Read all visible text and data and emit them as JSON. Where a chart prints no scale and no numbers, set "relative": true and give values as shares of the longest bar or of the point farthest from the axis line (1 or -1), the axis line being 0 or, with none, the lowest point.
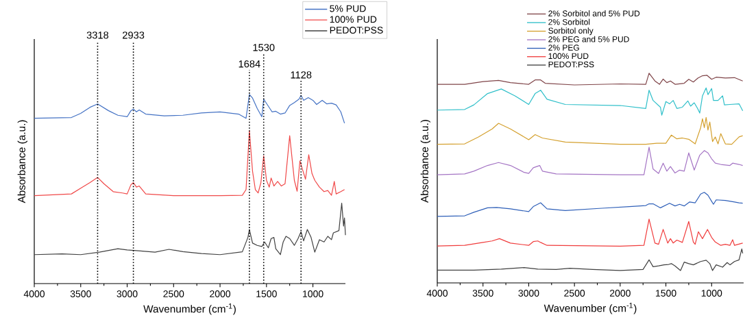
{
  "chart_data": [
    {
      "type": "line",
      "relative": true,
      "xlabel": "Wavenumber (cm$^{-1}$)",
      "ylabel": "Absorbance (a.u.)",
      "xlim": [
        4000,
        650
      ],
      "xticks": [
        4000,
        3500,
        3000,
        2500,
        2000,
        1500,
        1000
      ],
      "legend": "top right",
      "ref_lines": [
        {
          "axis": "x",
          "value": 3318,
          "label": "3318",
          "line_style": "dotted"
        },
        {
          "axis": "x",
          "value": 2933,
          "label": "2933",
          "line_style": "dotted"
        },
        {
          "axis": "x",
          "value": 1684,
          "label": "1684",
          "line_style": "dotted"
        },
        {
          "axis": "x",
          "value": 1530,
          "label": "1530",
          "line_style": "dotted"
        },
        {
          "axis": "x",
          "value": 1128,
          "label": "1128",
          "line_style": "dotted"
        }
      ],
      "series": [
        {
          "name": "5% PUD",
          "color": "#4472c4",
          "x": [
            4000,
            3600,
            3500,
            3400,
            3318,
            3200,
            3100,
            3000,
            2960,
            2933,
            2900,
            2870,
            2800,
            2600,
            2400,
            2200,
            2000,
            1800,
            1720,
            1684,
            1650,
            1600,
            1550,
            1530,
            1480,
            1440,
            1400,
            1350,
            1300,
            1250,
            1200,
            1150,
            1128,
            1100,
            1050,
            1000,
            960,
            900,
            850,
            800,
            750,
            700,
            660
          ],
          "values": [
            0.874,
            0.878,
            0.9,
            0.932,
            0.95,
            0.914,
            0.89,
            0.882,
            0.914,
            0.923,
            0.908,
            0.918,
            0.896,
            0.887,
            0.89,
            0.902,
            0.908,
            0.896,
            0.874,
            1.0,
            0.981,
            0.926,
            0.882,
            0.975,
            0.938,
            0.908,
            0.911,
            0.896,
            0.902,
            0.942,
            0.957,
            0.975,
            0.995,
            0.969,
            0.983,
            0.969,
            0.947,
            0.969,
            0.95,
            0.954,
            0.945,
            0.908,
            0.848
          ]
        },
        {
          "name": "100% PUD",
          "color": "#f04848",
          "x": [
            4000,
            3600,
            3500,
            3400,
            3318,
            3250,
            3150,
            3050,
            3000,
            2960,
            2933,
            2900,
            2870,
            2800,
            2500,
            2000,
            1760,
            1720,
            1684,
            1650,
            1620,
            1590,
            1560,
            1530,
            1500,
            1470,
            1450,
            1420,
            1380,
            1340,
            1300,
            1250,
            1200,
            1170,
            1140,
            1110,
            1080,
            1045,
            1010,
            980,
            930,
            880,
            840,
            800,
            770,
            750,
            700,
            660
          ],
          "values": [
            0.465,
            0.474,
            0.504,
            0.534,
            0.561,
            0.528,
            0.486,
            0.479,
            0.474,
            0.522,
            0.534,
            0.51,
            0.516,
            0.474,
            0.465,
            0.465,
            0.467,
            0.497,
            0.809,
            0.594,
            0.497,
            0.479,
            0.534,
            0.675,
            0.546,
            0.51,
            0.558,
            0.516,
            0.54,
            0.516,
            0.528,
            0.782,
            0.546,
            0.488,
            0.649,
            0.6,
            0.552,
            0.681,
            0.582,
            0.546,
            0.51,
            0.486,
            0.492,
            0.467,
            0.54,
            0.474,
            0.486,
            0.497
          ]
        },
        {
          "name": "PEDOT:PSS",
          "color": "#404040",
          "x": [
            4000,
            3700,
            3500,
            3300,
            3100,
            3000,
            2900,
            2700,
            2550,
            2400,
            2200,
            2000,
            1760,
            1700,
            1684,
            1650,
            1600,
            1550,
            1520,
            1480,
            1450,
            1420,
            1400,
            1350,
            1320,
            1290,
            1250,
            1200,
            1160,
            1128,
            1100,
            1060,
            1020,
            980,
            930,
            880,
            840,
            800,
            780,
            720,
            690,
            670,
            660,
            650
          ],
          "values": [
            0.153,
            0.157,
            0.153,
            0.166,
            0.184,
            0.178,
            0.174,
            0.166,
            0.181,
            0.169,
            0.159,
            0.153,
            0.168,
            0.244,
            0.286,
            0.214,
            0.202,
            0.196,
            0.22,
            0.189,
            0.238,
            0.244,
            0.184,
            0.153,
            0.22,
            0.25,
            0.238,
            0.202,
            0.238,
            0.274,
            0.226,
            0.286,
            0.244,
            0.166,
            0.232,
            0.22,
            0.25,
            0.232,
            0.268,
            0.28,
            0.425,
            0.304,
            0.347,
            0.256
          ]
        }
      ]
    },
    {
      "type": "line",
      "relative": true,
      "xlabel": "Wavenumber (cm$^{-1}$)",
      "ylabel": "Absorbance (a.u.)",
      "xlim": [
        4000,
        650
      ],
      "xticks": [
        4000,
        3500,
        3000,
        2500,
        2000,
        1500,
        1000
      ],
      "legend": "top",
      "series": [
        {
          "name": "2% Sorbitol and 5% PUD",
          "color": "#7f4448",
          "x": [
            4000,
            3700,
            3500,
            3330,
            3200,
            3000,
            2930,
            2870,
            2820,
            2500,
            2000,
            1720,
            1684,
            1620,
            1570,
            1530,
            1490,
            1450,
            1400,
            1300,
            1250,
            1200,
            1150,
            1100,
            1050,
            1000,
            950,
            850,
            750,
            660
          ],
          "values": [
            0.947,
            0.947,
            0.96,
            0.966,
            0.955,
            0.947,
            0.968,
            0.968,
            0.952,
            0.944,
            0.949,
            0.947,
            1.0,
            0.963,
            0.947,
            0.972,
            0.955,
            0.963,
            0.947,
            0.952,
            0.971,
            0.958,
            0.977,
            0.988,
            0.99,
            0.971,
            0.981,
            0.977,
            0.979,
            0.963
          ]
        },
        {
          "name": "2% Sorbitol",
          "color": "#2ebfc9",
          "x": [
            4000,
            3700,
            3600,
            3450,
            3300,
            3150,
            3000,
            2930,
            2870,
            2800,
            2600,
            2000,
            1720,
            1684,
            1640,
            1560,
            1545,
            1500,
            1460,
            1420,
            1380,
            1320,
            1260,
            1230,
            1190,
            1150,
            1130,
            1100,
            1060,
            1040,
            1000,
            980,
            930,
            880,
            860,
            800,
            700,
            660
          ],
          "values": [
            0.824,
            0.827,
            0.849,
            0.903,
            0.925,
            0.892,
            0.851,
            0.903,
            0.919,
            0.876,
            0.851,
            0.846,
            0.832,
            0.919,
            0.87,
            0.838,
            0.8,
            0.865,
            0.854,
            0.87,
            0.832,
            0.838,
            0.868,
            0.843,
            0.859,
            0.829,
            0.81,
            0.892,
            0.93,
            0.898,
            0.927,
            0.87,
            0.87,
            0.892,
            0.849,
            0.851,
            0.854,
            0.821
          ]
        },
        {
          "name": "Sorbitol only",
          "color": "#d4a02e",
          "x": [
            4000,
            3700,
            3550,
            3400,
            3330,
            3200,
            3050,
            3000,
            2930,
            2850,
            2600,
            2000,
            1720,
            1600,
            1500,
            1440,
            1380,
            1320,
            1250,
            1180,
            1120,
            1100,
            1080,
            1060,
            1040,
            1020,
            990,
            960,
            930,
            900,
            850,
            780,
            700,
            660
          ],
          "values": [
            0.661,
            0.663,
            0.696,
            0.734,
            0.761,
            0.734,
            0.696,
            0.683,
            0.707,
            0.691,
            0.672,
            0.661,
            0.661,
            0.666,
            0.666,
            0.705,
            0.687,
            0.691,
            0.685,
            0.663,
            0.74,
            0.783,
            0.74,
            0.789,
            0.729,
            0.767,
            0.674,
            0.696,
            0.663,
            0.712,
            0.663,
            0.661,
            0.696,
            0.702
          ]
        },
        {
          "name": "2% PEG and 5% PUD",
          "color": "#a474c4",
          "x": [
            4000,
            3700,
            3600,
            3450,
            3330,
            3200,
            3050,
            3000,
            2950,
            2880,
            2850,
            2700,
            2000,
            1740,
            1684,
            1640,
            1580,
            1530,
            1490,
            1450,
            1400,
            1350,
            1300,
            1250,
            1190,
            1130,
            1080,
            1040,
            1000,
            960,
            900,
            800,
            770,
            700,
            660
          ],
          "values": [
            0.516,
            0.52,
            0.533,
            0.56,
            0.574,
            0.56,
            0.527,
            0.522,
            0.549,
            0.56,
            0.533,
            0.52,
            0.516,
            0.516,
            0.647,
            0.543,
            0.522,
            0.571,
            0.533,
            0.555,
            0.524,
            0.538,
            0.533,
            0.62,
            0.538,
            0.609,
            0.631,
            0.62,
            0.592,
            0.571,
            0.565,
            0.56,
            0.571,
            0.565,
            0.56
          ]
        },
        {
          "name": "2% PEG",
          "color": "#2e5fb8",
          "x": [
            4000,
            3700,
            3600,
            3450,
            3350,
            3200,
            3000,
            2950,
            2870,
            2800,
            2600,
            2200,
            1900,
            1720,
            1684,
            1640,
            1560,
            1460,
            1400,
            1350,
            1300,
            1240,
            1180,
            1120,
            1080,
            1040,
            1000,
            980,
            950,
            850,
            750,
            700,
            660
          ],
          "values": [
            0.317,
            0.32,
            0.337,
            0.358,
            0.36,
            0.353,
            0.34,
            0.364,
            0.382,
            0.353,
            0.345,
            0.356,
            0.364,
            0.369,
            0.377,
            0.377,
            0.358,
            0.38,
            0.367,
            0.375,
            0.367,
            0.386,
            0.382,
            0.424,
            0.432,
            0.418,
            0.389,
            0.375,
            0.396,
            0.393,
            0.386,
            0.382,
            0.38
          ]
        },
        {
          "name": "100% PUD",
          "color": "#f03c3c",
          "x": [
            4000,
            3700,
            3500,
            3400,
            3320,
            3200,
            3000,
            2950,
            2900,
            2870,
            2800,
            2000,
            1740,
            1684,
            1620,
            1580,
            1530,
            1480,
            1450,
            1420,
            1380,
            1320,
            1250,
            1200,
            1180,
            1145,
            1100,
            1045,
            1000,
            960,
            900,
            850,
            800,
            770,
            750,
            660
          ],
          "values": [
            0.176,
            0.179,
            0.193,
            0.2,
            0.211,
            0.19,
            0.179,
            0.197,
            0.2,
            0.193,
            0.179,
            0.175,
            0.179,
            0.304,
            0.19,
            0.184,
            0.255,
            0.19,
            0.211,
            0.19,
            0.204,
            0.193,
            0.293,
            0.195,
            0.184,
            0.244,
            0.211,
            0.255,
            0.217,
            0.195,
            0.179,
            0.184,
            0.179,
            0.206,
            0.179,
            0.19
          ]
        },
        {
          "name": "PEDOT:PSS",
          "color": "#404040",
          "x": [
            4000,
            3600,
            3300,
            3050,
            2900,
            2700,
            2550,
            2300,
            2000,
            1750,
            1684,
            1640,
            1580,
            1520,
            1470,
            1440,
            1400,
            1340,
            1300,
            1250,
            1200,
            1120,
            1060,
            1020,
            990,
            950,
            880,
            830,
            800,
            750,
            700,
            670,
            660
          ],
          "values": [
            0.061,
            0.061,
            0.066,
            0.073,
            0.066,
            0.064,
            0.07,
            0.064,
            0.059,
            0.064,
            0.11,
            0.077,
            0.081,
            0.086,
            0.088,
            0.092,
            0.081,
            0.059,
            0.099,
            0.092,
            0.086,
            0.102,
            0.108,
            0.092,
            0.059,
            0.086,
            0.075,
            0.097,
            0.086,
            0.102,
            0.11,
            0.162,
            0.141
          ]
        }
      ]
    }
  ]
}
